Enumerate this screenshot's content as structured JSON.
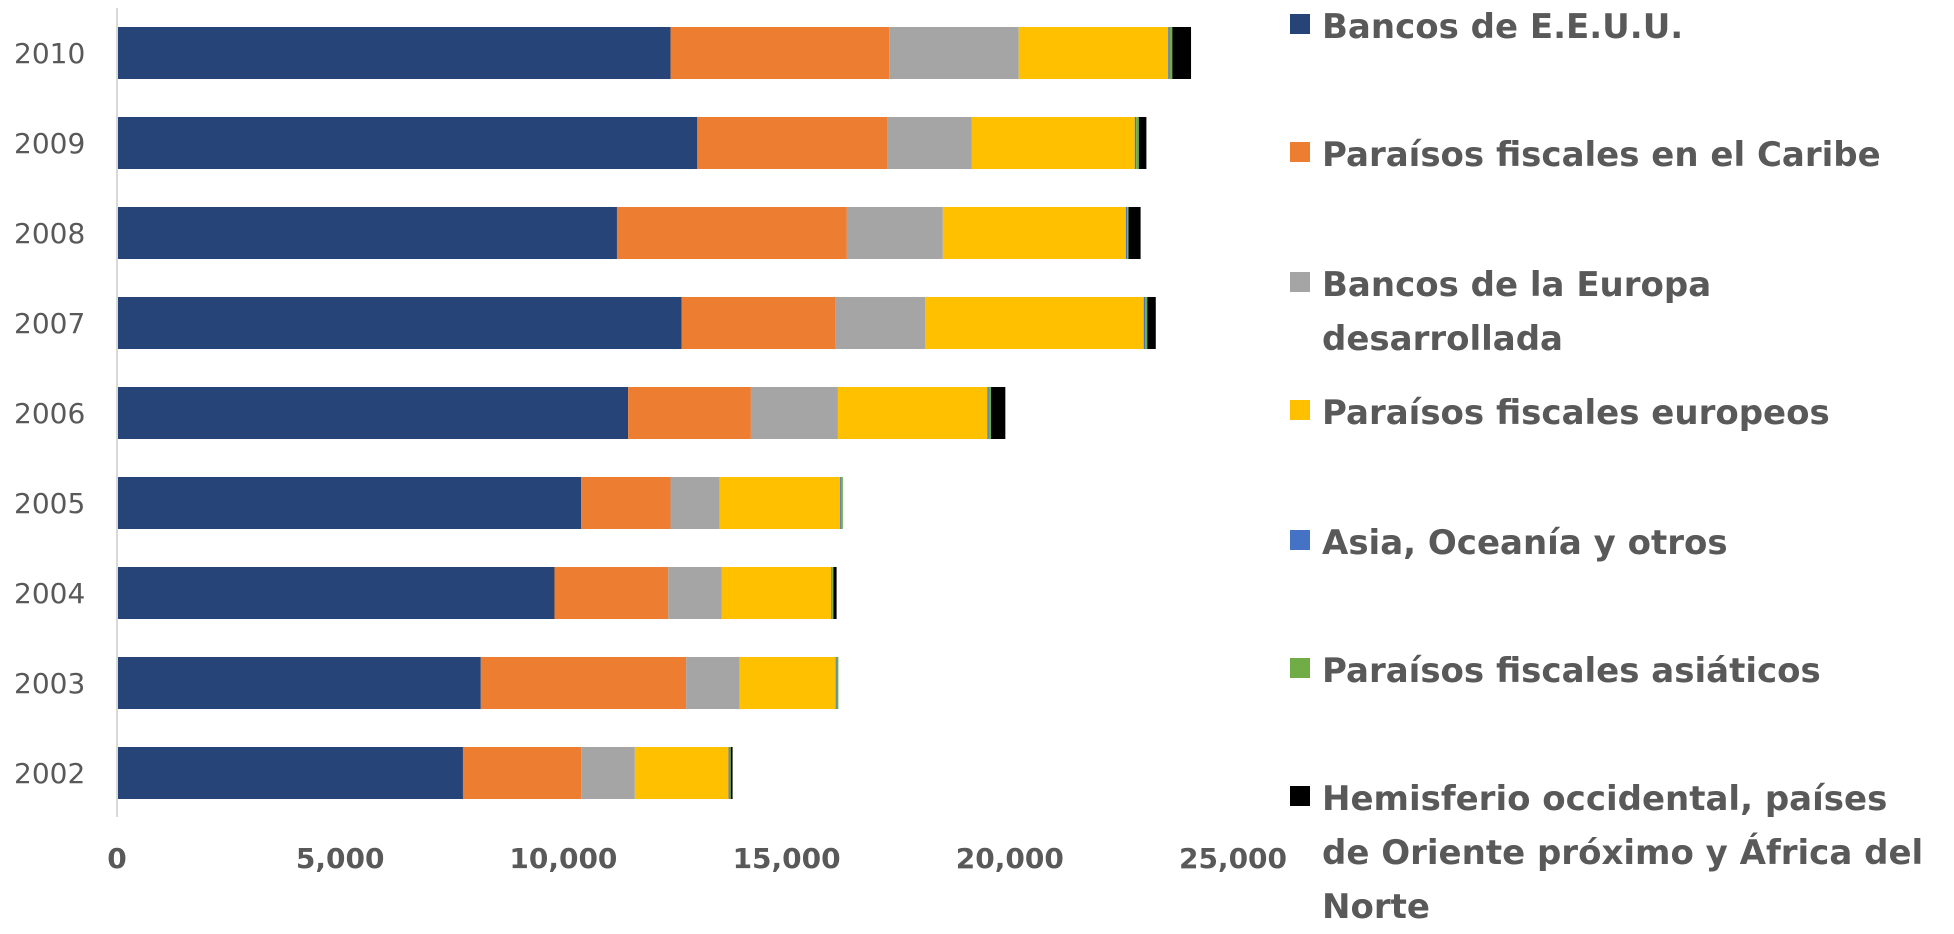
{
  "chart_data": {
    "type": "bar",
    "orientation": "horizontal",
    "stacked": true,
    "title": "",
    "xlabel": "",
    "ylabel": "",
    "categories": [
      "2010",
      "2009",
      "2008",
      "2007",
      "2006",
      "2005",
      "2004",
      "2003",
      "2002"
    ],
    "xlim": [
      0,
      25000
    ],
    "x_ticks": [
      "0",
      "5,000",
      "10,000",
      "15,000",
      "20,000",
      "25,000"
    ],
    "x_tick_values": [
      0,
      5000,
      10000,
      15000,
      20000,
      25000
    ],
    "grid": false,
    "legend_position": "right",
    "series": [
      {
        "name": "Bancos de E.E.U.U.",
        "color": "#264478",
        "values": [
          12400,
          13000,
          11200,
          12650,
          11450,
          10400,
          9800,
          8150,
          7750
        ]
      },
      {
        "name": "Paraísos fiscales en el Caribe",
        "color": "#ED7D31",
        "values": [
          4900,
          4250,
          5150,
          3450,
          2750,
          2000,
          2550,
          4600,
          2650
        ]
      },
      {
        "name": "Bancos de la Europa desarrollada",
        "color": "#A5A5A5",
        "values": [
          2900,
          1900,
          2150,
          2000,
          1950,
          1100,
          1200,
          1200,
          1200
        ]
      },
      {
        "name": "Paraísos fiscales europeos",
        "color": "#FFC000",
        "values": [
          3350,
          3650,
          4100,
          4900,
          3350,
          2700,
          2450,
          2150,
          2100
        ]
      },
      {
        "name": "Asia, Oceanía y otros",
        "color": "#4472C4",
        "values": [
          30,
          30,
          30,
          30,
          30,
          20,
          20,
          20,
          20
        ]
      },
      {
        "name": "Paraísos fiscales asiáticos",
        "color": "#70AD47",
        "values": [
          60,
          60,
          30,
          50,
          50,
          40,
          30,
          40,
          30
        ]
      },
      {
        "name": "Hemisferio occidental, países de Oriente próximo y África del Norte",
        "color": "#000000",
        "values": [
          420,
          170,
          270,
          190,
          320,
          0,
          70,
          0,
          40
        ]
      }
    ]
  }
}
